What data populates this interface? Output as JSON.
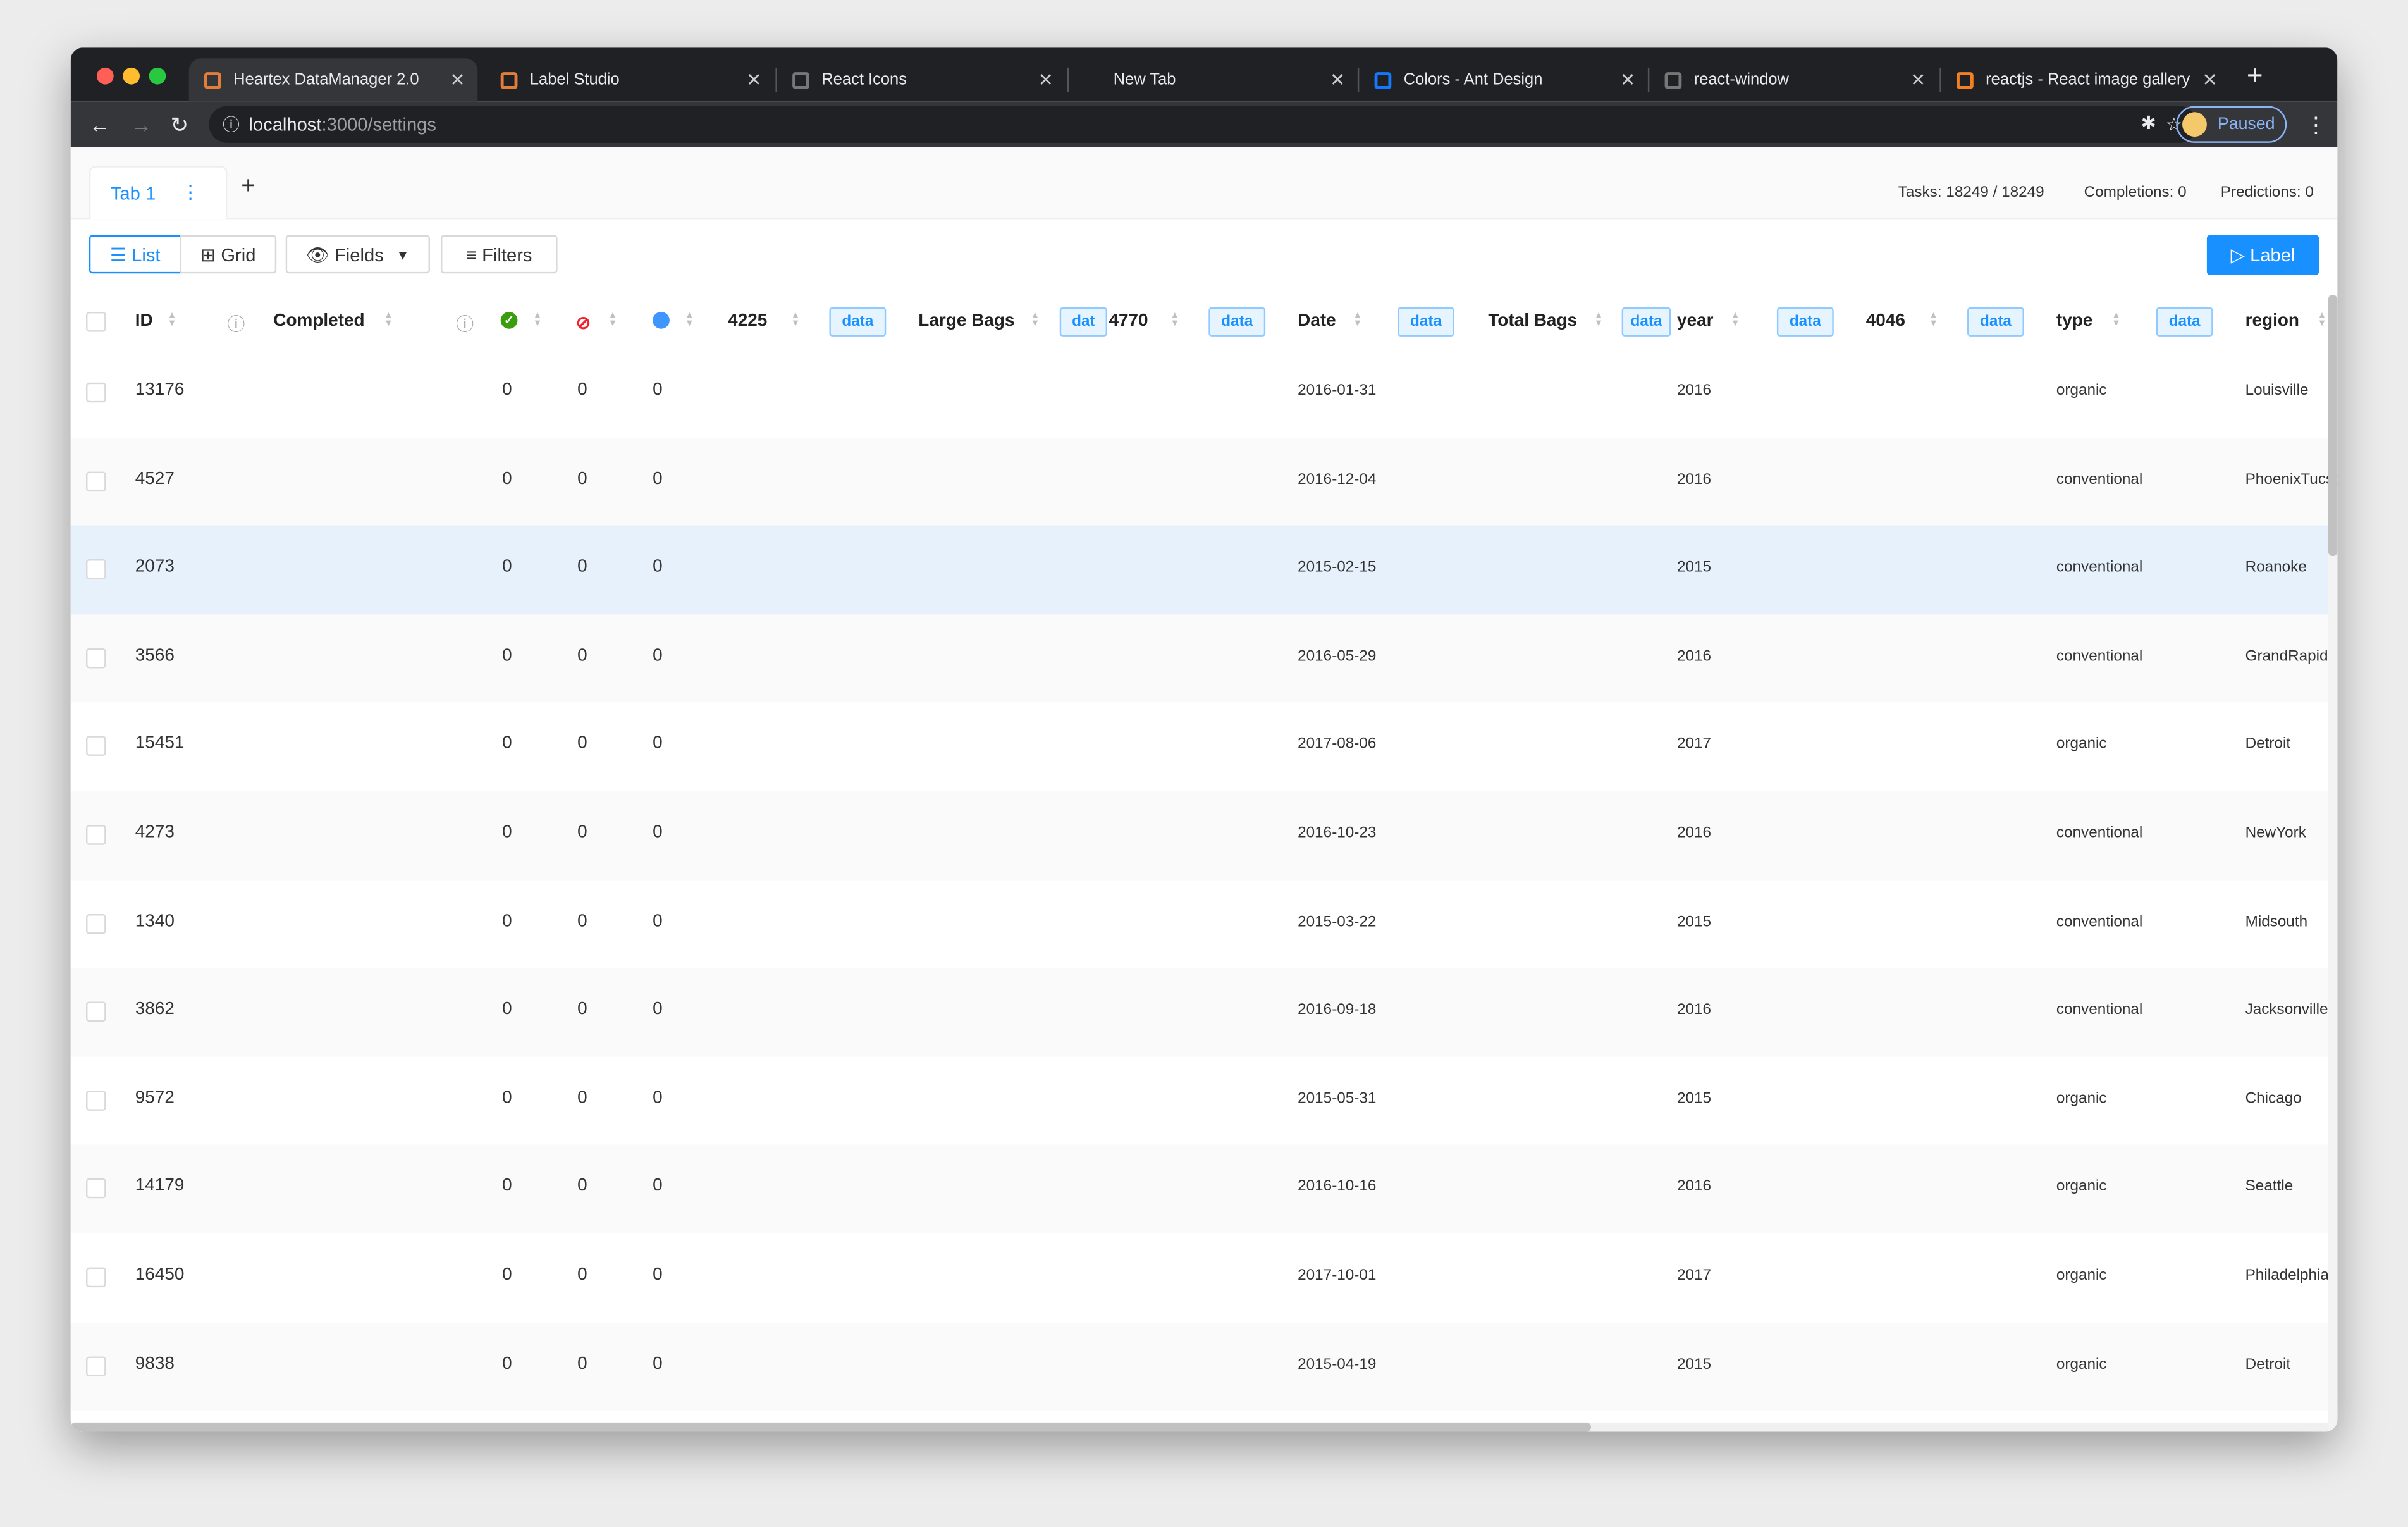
{
  "browser": {
    "tabs": [
      {
        "title": "Heartex DataManager 2.0",
        "icon": "heartex-icon",
        "active": true
      },
      {
        "title": "Label Studio",
        "icon": "heartex-icon"
      },
      {
        "title": "React Icons",
        "icon": "globe-icon"
      },
      {
        "title": "New Tab",
        "icon": ""
      },
      {
        "title": "Colors - Ant Design",
        "icon": "ant-design-icon"
      },
      {
        "title": "react-window",
        "icon": "globe-icon"
      },
      {
        "title": "reactjs - React image gallery",
        "icon": "stackoverflow-icon"
      }
    ],
    "url_host": "localhost",
    "url_path": ":3000/settings",
    "profile_status": "Paused"
  },
  "app": {
    "tab_label": "Tab 1",
    "tasks": "Tasks: 18249 / 18249",
    "completions": "Completions: 0",
    "predictions": "Predictions: 0",
    "view_list": "List",
    "view_grid": "Grid",
    "fields": "Fields",
    "filters": "Filters",
    "label": "Label",
    "accent": "#1890ff"
  },
  "columns": {
    "id": "ID",
    "completed": "Completed",
    "c4225": "4225",
    "large_bags": "Large Bags",
    "c4770": "4770",
    "date": "Date",
    "total_bags": "Total Bags",
    "year": "year",
    "c4046": "4046",
    "type": "type",
    "region": "region",
    "tag": "data",
    "tag_short": "dat"
  },
  "rows": [
    {
      "id": "13176",
      "c": "0",
      "r": "0",
      "p": "0",
      "date": "2016-01-31",
      "year": "2016",
      "type": "organic",
      "region": "Louisville"
    },
    {
      "id": "4527",
      "c": "0",
      "r": "0",
      "p": "0",
      "date": "2016-12-04",
      "year": "2016",
      "type": "conventional",
      "region": "PhoenixTucson"
    },
    {
      "id": "2073",
      "c": "0",
      "r": "0",
      "p": "0",
      "date": "2015-02-15",
      "year": "2015",
      "type": "conventional",
      "region": "Roanoke",
      "highlighted": true
    },
    {
      "id": "3566",
      "c": "0",
      "r": "0",
      "p": "0",
      "date": "2016-05-29",
      "year": "2016",
      "type": "conventional",
      "region": "GrandRapids"
    },
    {
      "id": "15451",
      "c": "0",
      "r": "0",
      "p": "0",
      "date": "2017-08-06",
      "year": "2017",
      "type": "organic",
      "region": "Detroit"
    },
    {
      "id": "4273",
      "c": "0",
      "r": "0",
      "p": "0",
      "date": "2016-10-23",
      "year": "2016",
      "type": "conventional",
      "region": "NewYork"
    },
    {
      "id": "1340",
      "c": "0",
      "r": "0",
      "p": "0",
      "date": "2015-03-22",
      "year": "2015",
      "type": "conventional",
      "region": "Midsouth"
    },
    {
      "id": "3862",
      "c": "0",
      "r": "0",
      "p": "0",
      "date": "2016-09-18",
      "year": "2016",
      "type": "conventional",
      "region": "Jacksonville"
    },
    {
      "id": "9572",
      "c": "0",
      "r": "0",
      "p": "0",
      "date": "2015-05-31",
      "year": "2015",
      "type": "organic",
      "region": "Chicago"
    },
    {
      "id": "14179",
      "c": "0",
      "r": "0",
      "p": "0",
      "date": "2016-10-16",
      "year": "2016",
      "type": "organic",
      "region": "Seattle"
    },
    {
      "id": "16450",
      "c": "0",
      "r": "0",
      "p": "0",
      "date": "2017-10-01",
      "year": "2017",
      "type": "organic",
      "region": "Philadelphia"
    },
    {
      "id": "9838",
      "c": "0",
      "r": "0",
      "p": "0",
      "date": "2015-04-19",
      "year": "2015",
      "type": "organic",
      "region": "Detroit"
    }
  ]
}
